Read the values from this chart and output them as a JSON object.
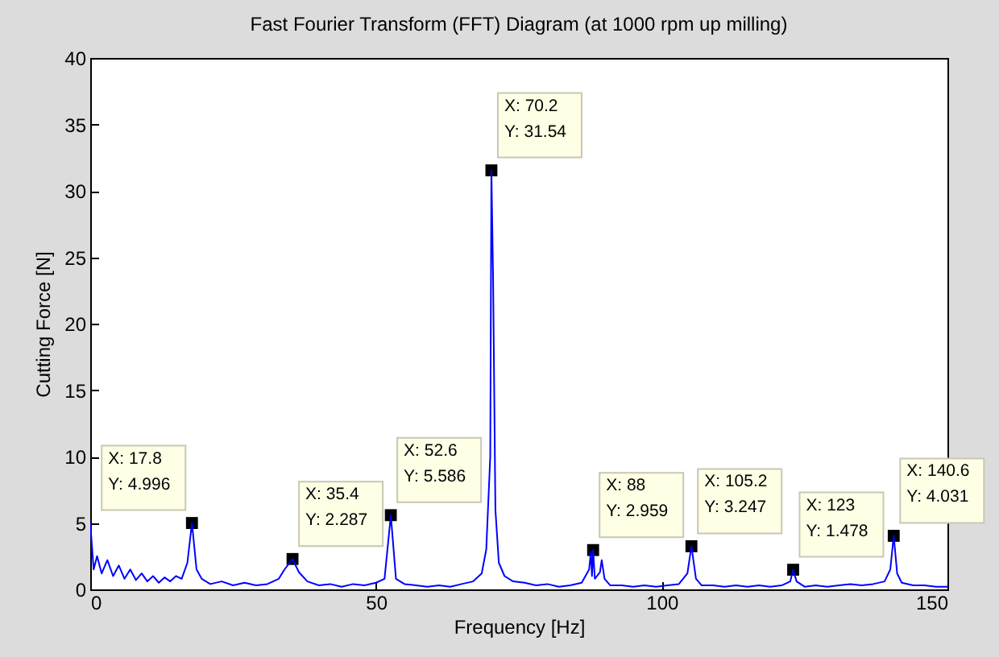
{
  "chart_data": {
    "type": "line",
    "title": "Fast Fourier Transform (FFT) Diagram (at 1000 rpm up milling)",
    "xlabel": "Frequency [Hz]",
    "ylabel": "Cutting Force [N]",
    "xlim": [
      0,
      150
    ],
    "xticks": [
      0,
      50,
      100,
      150
    ],
    "ylim": [
      0,
      40
    ],
    "yticks": [
      0,
      5,
      10,
      15,
      20,
      25,
      30,
      35,
      40
    ],
    "grid": false,
    "marker": "none",
    "line_style": "solid",
    "x": [
      0,
      0.6,
      1.2,
      2,
      3,
      4,
      5,
      6,
      7,
      8,
      9,
      10,
      11,
      12,
      13,
      14,
      15,
      16,
      17,
      17.8,
      18.6,
      19.5,
      21,
      23,
      25,
      27,
      29,
      31,
      33,
      34,
      35.4,
      36.5,
      38,
      40,
      42,
      44,
      46,
      48,
      50,
      51.5,
      52.6,
      53.5,
      55,
      57,
      59,
      61,
      63,
      65,
      67,
      68.5,
      69.3,
      70.0,
      70.2,
      70.5,
      70.9,
      71.5,
      72.5,
      74,
      76,
      78,
      80,
      82,
      84,
      86,
      87.3,
      87.6,
      87.8,
      88,
      88.3,
      89.2,
      89.5,
      90,
      91,
      93,
      95,
      97,
      99,
      101,
      103,
      104.5,
      105.2,
      106,
      107,
      109,
      111,
      113,
      115,
      117,
      119,
      121,
      122.5,
      123,
      123.6,
      125,
      127,
      129,
      131,
      133,
      135,
      137,
      139,
      140,
      140.6,
      141.2,
      142,
      144,
      146,
      148,
      150
    ],
    "series": [
      {
        "color": "#0000ff",
        "values": [
          5.0,
          1.5,
          2.5,
          1.2,
          2.2,
          1.0,
          1.8,
          0.8,
          1.5,
          0.7,
          1.2,
          0.6,
          1.0,
          0.5,
          0.9,
          0.6,
          1.0,
          0.8,
          2.0,
          4.996,
          1.5,
          0.8,
          0.4,
          0.6,
          0.3,
          0.5,
          0.3,
          0.4,
          0.8,
          1.5,
          2.287,
          1.3,
          0.6,
          0.3,
          0.4,
          0.2,
          0.4,
          0.3,
          0.5,
          0.8,
          5.586,
          0.8,
          0.4,
          0.3,
          0.2,
          0.3,
          0.2,
          0.4,
          0.6,
          1.2,
          3.0,
          10,
          31.54,
          23.3,
          6,
          2,
          1.0,
          0.6,
          0.5,
          0.3,
          0.4,
          0.2,
          0.3,
          0.5,
          1.5,
          2.8,
          1.0,
          2.959,
          0.8,
          1.3,
          2.2,
          0.8,
          0.3,
          0.3,
          0.2,
          0.3,
          0.2,
          0.3,
          0.4,
          1.2,
          3.247,
          0.8,
          0.3,
          0.3,
          0.2,
          0.3,
          0.2,
          0.3,
          0.2,
          0.3,
          0.6,
          1.478,
          0.6,
          0.2,
          0.3,
          0.2,
          0.3,
          0.4,
          0.3,
          0.4,
          0.6,
          1.5,
          4.031,
          1.2,
          0.5,
          0.3,
          0.3,
          0.2,
          0.2
        ]
      }
    ],
    "annotations": [
      {
        "text": "X: 17.8\nY: 4.996",
        "x": 17.8,
        "y": 4.996
      },
      {
        "text": "X: 35.4\nY: 2.287",
        "x": 35.4,
        "y": 2.287
      },
      {
        "text": "X: 52.6\nY: 5.586",
        "x": 52.6,
        "y": 5.586
      },
      {
        "text": "X: 70.2\nY: 31.54",
        "x": 70.2,
        "y": 31.54
      },
      {
        "text": "X: 88\nY: 2.959",
        "x": 88,
        "y": 2.959
      },
      {
        "text": "X: 105.2\nY: 3.247",
        "x": 105.2,
        "y": 3.247
      },
      {
        "text": "X: 123\nY: 1.478",
        "x": 123,
        "y": 1.478
      },
      {
        "text": "X: 140.6\nY: 4.031",
        "x": 140.6,
        "y": 4.031
      }
    ]
  }
}
